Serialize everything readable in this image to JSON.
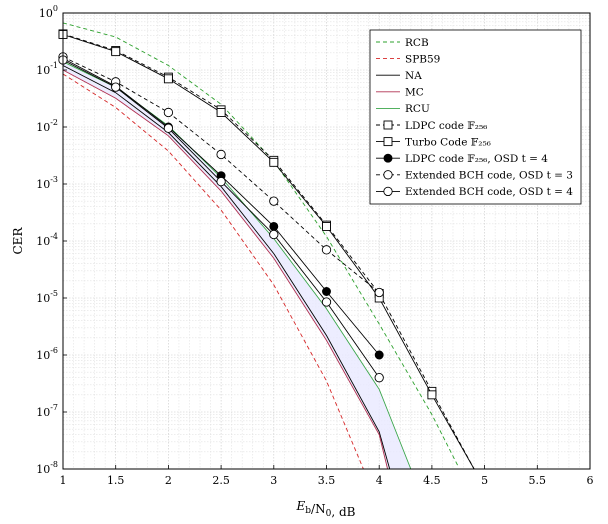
{
  "chart_data": {
    "type": "line",
    "xlabel": "E_b/N_0, dB",
    "ylabel": "CER",
    "xlim": [
      1,
      6
    ],
    "ylim_log10": [
      -8,
      0
    ],
    "xscale": "linear",
    "yscale": "log",
    "grid": true,
    "legend_position": "top-right",
    "x_ticks": [
      "1",
      "1.5",
      "2",
      "2.5",
      "3",
      "3.5",
      "4",
      "4.5",
      "5",
      "5.5",
      "6"
    ],
    "y_ticks": [
      {
        "base": "10",
        "exp": "0"
      },
      {
        "base": "10",
        "exp": "-1"
      },
      {
        "base": "10",
        "exp": "-2"
      },
      {
        "base": "10",
        "exp": "-3"
      },
      {
        "base": "10",
        "exp": "-4"
      },
      {
        "base": "10",
        "exp": "-5"
      },
      {
        "base": "10",
        "exp": "-6"
      },
      {
        "base": "10",
        "exp": "-7"
      },
      {
        "base": "10",
        "exp": "-8"
      }
    ],
    "shaded_region": {
      "between": [
        "MC",
        "RCU"
      ],
      "color": "#e8e8ff"
    },
    "series": [
      {
        "name": "RCB",
        "color": "#2ca02c",
        "dash": "dashed",
        "marker": "none",
        "x": [
          1,
          1.5,
          2,
          2.5,
          3,
          3.5,
          4,
          4.5,
          4.75
        ],
        "y": [
          0.67,
          0.38,
          0.12,
          0.025,
          0.0025,
          0.00012,
          3.5e-06,
          9e-08,
          1.1e-08
        ]
      },
      {
        "name": "SPB59",
        "color": "#d62728",
        "dash": "dashed",
        "marker": "none",
        "x": [
          1,
          1.5,
          2,
          2.5,
          3,
          3.5,
          3.85
        ],
        "y": [
          0.085,
          0.022,
          0.0038,
          0.00035,
          1.7e-05,
          3.5e-07,
          1e-08
        ]
      },
      {
        "name": "NA",
        "color": "#000000",
        "dash": "solid",
        "marker": "none",
        "x": [
          1,
          1.5,
          2,
          2.5,
          3,
          3.5,
          4,
          4.1
        ],
        "y": [
          0.12,
          0.04,
          0.008,
          0.0009,
          6e-05,
          2.2e-06,
          4.5e-08,
          1e-08
        ]
      },
      {
        "name": "MC",
        "color": "#b03050",
        "dash": "solid",
        "marker": "none",
        "x": [
          1,
          1.5,
          2,
          2.5,
          3,
          3.5,
          4,
          4.08
        ],
        "y": [
          0.1,
          0.032,
          0.007,
          0.00075,
          5e-05,
          1.8e-06,
          4e-08,
          1e-08
        ]
      },
      {
        "name": "RCU",
        "color": "#3aa64a",
        "dash": "solid",
        "marker": "none",
        "x": [
          1,
          1.5,
          2,
          2.5,
          3,
          3.5,
          4,
          4.3
        ],
        "y": [
          0.14,
          0.05,
          0.0105,
          0.0013,
          0.00011,
          6.5e-06,
          2.5e-07,
          1e-08
        ]
      },
      {
        "name": "LDPC code 𝔽₂₅₆",
        "color": "#000000",
        "dash": "dashed",
        "marker": "square",
        "x": [
          1,
          1.5,
          2,
          2.5,
          3,
          3.5,
          4,
          4.5,
          4.9
        ],
        "y": [
          0.43,
          0.22,
          0.075,
          0.02,
          0.0026,
          0.00019,
          1.2e-05,
          2.3e-07,
          1e-08
        ]
      },
      {
        "name": "Turbo Code 𝔽₂₅₆",
        "color": "#000000",
        "dash": "solid",
        "marker": "square",
        "x": [
          1,
          1.5,
          2,
          2.5,
          3,
          3.5,
          4,
          4.5,
          4.9
        ],
        "y": [
          0.42,
          0.21,
          0.07,
          0.018,
          0.0024,
          0.00018,
          1e-05,
          2e-07,
          1e-08
        ]
      },
      {
        "name": "LDPC code 𝔽₂₅₆, OSD t = 4",
        "color": "#000000",
        "dash": "solid",
        "marker": "filled-circle",
        "x": [
          1,
          1.5,
          2,
          2.5,
          3,
          3.5,
          4
        ],
        "y": [
          0.16,
          0.052,
          0.01,
          0.0014,
          0.00018,
          1.3e-05,
          1e-06
        ]
      },
      {
        "name": "Extended BCH code, OSD t = 3",
        "color": "#000000",
        "dash": "dashed",
        "marker": "open-circle",
        "x": [
          1,
          1.5,
          2,
          2.5,
          3,
          3.5,
          4
        ],
        "y": [
          0.17,
          0.062,
          0.018,
          0.0033,
          0.0005,
          7e-05,
          1.25e-05
        ]
      },
      {
        "name": "Extended BCH code, OSD t = 4",
        "color": "#000000",
        "dash": "solid",
        "marker": "open-circle",
        "x": [
          1,
          1.5,
          2,
          2.5,
          3,
          3.5,
          4
        ],
        "y": [
          0.15,
          0.05,
          0.0095,
          0.0011,
          0.00013,
          8.5e-06,
          4e-07
        ]
      }
    ]
  }
}
